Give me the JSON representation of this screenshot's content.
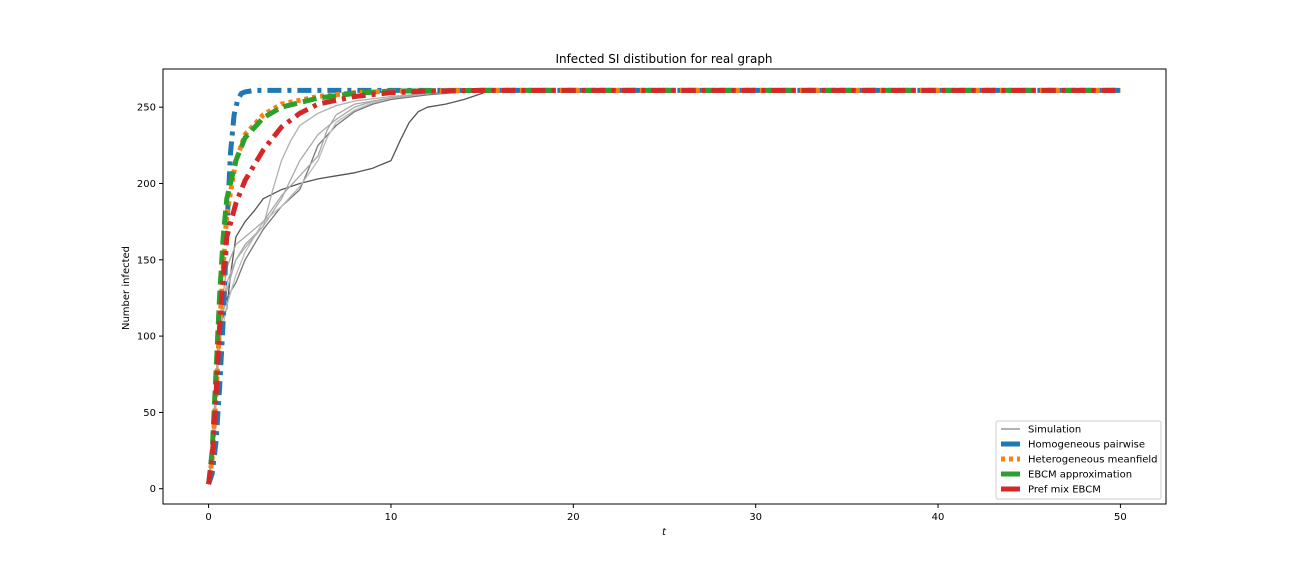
{
  "chart_data": {
    "type": "line",
    "title": "Infected SI distibution for real graph",
    "xlabel": "t",
    "ylabel": "Number infected",
    "xlim": [
      -2.5,
      52.5
    ],
    "ylim": [
      -10,
      275
    ],
    "x_ticks": [
      0,
      10,
      20,
      30,
      40,
      50
    ],
    "y_ticks": [
      0,
      50,
      100,
      150,
      200,
      250
    ],
    "x_tick_labels": [
      "0",
      "10",
      "20",
      "30",
      "40",
      "50"
    ],
    "y_tick_labels": [
      "0",
      "50",
      "100",
      "150",
      "200",
      "250"
    ],
    "grid": false,
    "legend_position": "lower-right",
    "legend": [
      "Simulation",
      "Homogeneous pairwise",
      "Heterogeneous meanfield",
      "EBCM approximation",
      "Pref mix EBCM"
    ],
    "colors": {
      "simulation": "#999999",
      "simulation_dark": "#555555",
      "homogeneous_pairwise": "#1f77b4",
      "heterogeneous_meanfield": "#ff7f0e",
      "ebcm": "#2ca02c",
      "pref_mix": "#d62728"
    },
    "series": [
      {
        "name": "Homogeneous pairwise",
        "style": "dashdot",
        "color": "#1f77b4",
        "points": [
          [
            0,
            3
          ],
          [
            0.2,
            10
          ],
          [
            0.4,
            30
          ],
          [
            0.6,
            65
          ],
          [
            0.8,
            110
          ],
          [
            1.0,
            170
          ],
          [
            1.2,
            220
          ],
          [
            1.4,
            245
          ],
          [
            1.6,
            255
          ],
          [
            1.8,
            259
          ],
          [
            2.0,
            260
          ],
          [
            2.5,
            261
          ],
          [
            3,
            261
          ],
          [
            50,
            261
          ]
        ]
      },
      {
        "name": "Heterogeneous meanfield",
        "style": "dotted",
        "color": "#ff7f0e",
        "points": [
          [
            0,
            3
          ],
          [
            0.2,
            20
          ],
          [
            0.4,
            60
          ],
          [
            0.6,
            105
          ],
          [
            0.8,
            145
          ],
          [
            1.0,
            180
          ],
          [
            1.5,
            215
          ],
          [
            2,
            232
          ],
          [
            3,
            245
          ],
          [
            4,
            252
          ],
          [
            6,
            257
          ],
          [
            8,
            259.5
          ],
          [
            10,
            260.5
          ],
          [
            15,
            261
          ],
          [
            50,
            261
          ]
        ]
      },
      {
        "name": "EBCM approximation",
        "style": "dashed",
        "color": "#2ca02c",
        "points": [
          [
            0,
            3
          ],
          [
            0.2,
            25
          ],
          [
            0.4,
            75
          ],
          [
            0.6,
            125
          ],
          [
            0.8,
            165
          ],
          [
            1.0,
            190
          ],
          [
            1.5,
            215
          ],
          [
            2,
            230
          ],
          [
            3,
            243
          ],
          [
            4,
            250
          ],
          [
            6,
            256
          ],
          [
            8,
            259
          ],
          [
            10,
            260.5
          ],
          [
            15,
            261
          ],
          [
            50,
            261
          ]
        ]
      },
      {
        "name": "Pref mix EBCM",
        "style": "dashdot",
        "color": "#d62728",
        "points": [
          [
            0,
            3
          ],
          [
            0.2,
            20
          ],
          [
            0.4,
            60
          ],
          [
            0.6,
            105
          ],
          [
            0.8,
            140
          ],
          [
            1.0,
            165
          ],
          [
            1.5,
            187
          ],
          [
            2,
            202
          ],
          [
            3,
            222
          ],
          [
            4,
            237
          ],
          [
            5,
            246
          ],
          [
            6,
            252
          ],
          [
            8,
            257
          ],
          [
            10,
            259.5
          ],
          [
            12,
            260.5
          ],
          [
            15,
            261
          ],
          [
            50,
            261
          ]
        ]
      }
    ],
    "simulations": [
      {
        "color": "#555555",
        "points": [
          [
            0,
            3
          ],
          [
            0.3,
            30
          ],
          [
            0.5,
            80
          ],
          [
            0.7,
            110
          ],
          [
            1,
            118
          ],
          [
            1.2,
            140
          ],
          [
            1.5,
            165
          ],
          [
            2,
            175
          ],
          [
            2.5,
            182
          ],
          [
            3,
            190
          ],
          [
            4,
            196
          ],
          [
            5,
            200
          ],
          [
            6,
            203
          ],
          [
            7,
            205
          ],
          [
            8,
            207
          ],
          [
            9,
            210
          ],
          [
            10,
            215
          ],
          [
            10.5,
            228
          ],
          [
            11,
            240
          ],
          [
            11.5,
            247
          ],
          [
            12,
            250
          ],
          [
            13,
            252
          ],
          [
            14,
            255
          ],
          [
            15,
            259
          ],
          [
            15.3,
            261
          ]
        ]
      },
      {
        "color": "#777777",
        "points": [
          [
            0,
            3
          ],
          [
            0.3,
            35
          ],
          [
            0.5,
            90
          ],
          [
            0.7,
            112
          ],
          [
            1,
            125
          ],
          [
            1.5,
            135
          ],
          [
            2,
            150
          ],
          [
            3,
            170
          ],
          [
            4,
            185
          ],
          [
            5,
            196
          ],
          [
            5.5,
            210
          ],
          [
            6,
            225
          ],
          [
            7,
            238
          ],
          [
            8,
            247
          ],
          [
            9,
            252
          ],
          [
            10,
            255
          ],
          [
            12,
            258
          ],
          [
            14,
            260
          ],
          [
            15,
            261
          ]
        ]
      },
      {
        "color": "#aaaaaa",
        "points": [
          [
            0,
            3
          ],
          [
            0.3,
            40
          ],
          [
            0.6,
            100
          ],
          [
            1,
            130
          ],
          [
            1.5,
            150
          ],
          [
            2,
            160
          ],
          [
            3,
            172
          ],
          [
            4,
            190
          ],
          [
            5,
            215
          ],
          [
            6,
            232
          ],
          [
            7,
            242
          ],
          [
            8,
            250
          ],
          [
            9,
            254
          ],
          [
            10,
            256
          ],
          [
            12,
            259
          ],
          [
            14,
            260.5
          ],
          [
            15,
            261
          ]
        ]
      },
      {
        "color": "#bbbbbb",
        "points": [
          [
            0,
            3
          ],
          [
            0.3,
            35
          ],
          [
            0.6,
            95
          ],
          [
            1,
            120
          ],
          [
            1.5,
            140
          ],
          [
            2,
            155
          ],
          [
            2.5,
            165
          ],
          [
            3,
            175
          ],
          [
            4,
            185
          ],
          [
            5,
            198
          ],
          [
            6,
            215
          ],
          [
            6.5,
            230
          ],
          [
            7,
            240
          ],
          [
            8,
            248
          ],
          [
            9,
            253
          ],
          [
            10,
            256
          ],
          [
            12,
            259
          ],
          [
            14,
            260.5
          ],
          [
            15,
            261
          ]
        ]
      },
      {
        "color": "#b0b0b0",
        "points": [
          [
            0,
            3
          ],
          [
            0.3,
            45
          ],
          [
            0.6,
            105
          ],
          [
            1,
            135
          ],
          [
            1.5,
            150
          ],
          [
            2,
            158
          ],
          [
            3,
            172
          ],
          [
            3.5,
            195
          ],
          [
            4,
            215
          ],
          [
            4.5,
            228
          ],
          [
            5,
            238
          ],
          [
            6,
            246
          ],
          [
            7,
            251
          ],
          [
            8,
            254
          ],
          [
            10,
            257
          ],
          [
            12,
            259
          ],
          [
            14,
            260.5
          ],
          [
            15,
            261
          ]
        ]
      },
      {
        "color": "#a8a8a8",
        "points": [
          [
            0,
            3
          ],
          [
            0.3,
            50
          ],
          [
            0.6,
            110
          ],
          [
            1,
            145
          ],
          [
            1.5,
            160
          ],
          [
            2,
            165
          ],
          [
            3,
            175
          ],
          [
            4,
            192
          ],
          [
            5,
            205
          ],
          [
            6,
            218
          ],
          [
            6.5,
            235
          ],
          [
            7,
            245
          ],
          [
            8,
            252
          ],
          [
            10,
            256
          ],
          [
            12,
            259
          ],
          [
            14,
            260.5
          ],
          [
            15,
            261
          ]
        ]
      }
    ]
  }
}
